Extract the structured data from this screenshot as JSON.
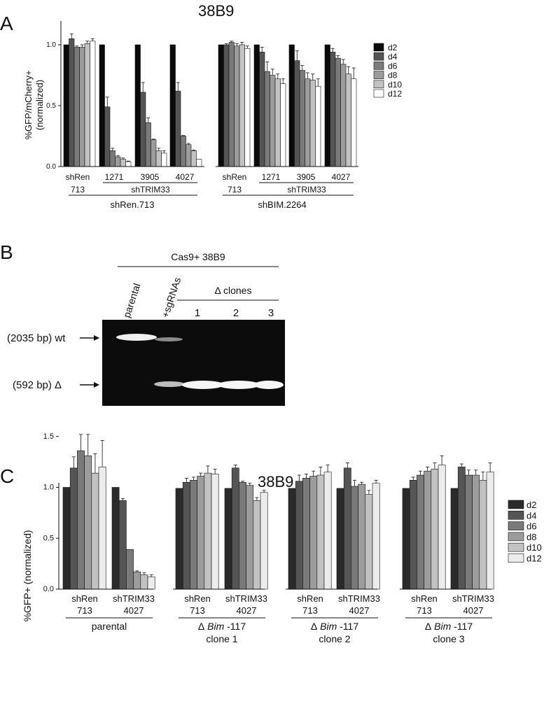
{
  "panels": {
    "A": {
      "letter": "A",
      "title": "38B9",
      "ylabel": "%GFP/mCherry+\n(normalized)",
      "yticks": [
        "1.0",
        "0.5",
        "0.0"
      ],
      "legend": [
        "d2",
        "d4",
        "d6",
        "d8",
        "d10",
        "d12"
      ],
      "groups": [
        {
          "upper": "shRen",
          "lower": "713"
        },
        {
          "upper": "1271",
          "lower": ""
        },
        {
          "upper": "3905",
          "lower": ""
        },
        {
          "upper": "4027",
          "lower": ""
        },
        {
          "upper": "shRen",
          "lower": "713"
        },
        {
          "upper": "1271",
          "lower": ""
        },
        {
          "upper": "3905",
          "lower": ""
        },
        {
          "upper": "4027",
          "lower": ""
        }
      ],
      "shtrim_label": "shTRIM33",
      "clusters": [
        "shRen.713",
        "shBIM.2264"
      ]
    },
    "B": {
      "letter": "B",
      "header": "Cas9+ 38B9",
      "lanes": [
        "parental",
        "+sgRNAs"
      ],
      "clones_header": "Δ clones",
      "clone_numbers": [
        "1",
        "2",
        "3"
      ],
      "band_wt": "(2035 bp) wt",
      "band_del": "(592 bp) Δ"
    },
    "C": {
      "letter": "C",
      "title": "38B9",
      "ylabel": "%GFP+ (normalized)",
      "yticks": [
        "1.5",
        "1.0",
        "0.5",
        "0.0"
      ],
      "legend": [
        "d2",
        "d4",
        "d6",
        "d8",
        "d10",
        "d12"
      ],
      "group_upper": [
        "shRen",
        "shTRIM33"
      ],
      "group_lower": [
        "713",
        "4027"
      ],
      "clusters": [
        {
          "line1": "parental",
          "line2": ""
        },
        {
          "line1": "Δ Bim -117",
          "line2": "clone 1"
        },
        {
          "line1": "Δ Bim -117",
          "line2": "clone 2"
        },
        {
          "line1": "Δ Bim -117",
          "line2": "clone 3"
        }
      ]
    }
  },
  "colors": {
    "d2": "#2b2b2b",
    "d4": "#555555",
    "d6": "#7a7a7a",
    "d8": "#9c9c9c",
    "d10": "#c2c2c2",
    "d12": "#ececec",
    "A_d2": "#0a0a0a",
    "A_d12": "#ffffff",
    "gel_bg": "#0c0c0c",
    "gel_band": "#f4f4f4"
  },
  "chart_data": [
    {
      "type": "bar",
      "panel": "A",
      "title": "38B9",
      "ylabel": "%GFP/mCherry+ (normalized)",
      "ylim": [
        0,
        1.2
      ],
      "series_names": [
        "d2",
        "d4",
        "d6",
        "d8",
        "d10",
        "d12"
      ],
      "groups": [
        {
          "cluster": "shRen.713",
          "label": "shRen 713",
          "values": [
            1.0,
            1.05,
            0.98,
            0.98,
            1.01,
            1.03
          ],
          "errors": [
            0.0,
            0.04,
            0.01,
            0.02,
            0.02,
            0.02
          ]
        },
        {
          "cluster": "shRen.713",
          "label": "shTRIM33 1271",
          "values": [
            1.0,
            0.49,
            0.13,
            0.08,
            0.06,
            0.04
          ],
          "errors": [
            0.0,
            0.08,
            0.02,
            0.01,
            0.01,
            0.005
          ]
        },
        {
          "cluster": "shRen.713",
          "label": "shTRIM33 3905",
          "values": [
            1.0,
            0.61,
            0.36,
            0.22,
            0.13,
            0.11
          ],
          "errors": [
            0.0,
            0.08,
            0.04,
            0.005,
            0.02,
            0.02
          ]
        },
        {
          "cluster": "shRen.713",
          "label": "shTRIM33 4027",
          "values": [
            1.0,
            0.62,
            0.25,
            0.18,
            0.13,
            0.06
          ],
          "errors": [
            0.0,
            0.07,
            0.005,
            0.01,
            0.005,
            0.0
          ]
        },
        {
          "cluster": "shBIM.2264",
          "label": "shRen 713",
          "values": [
            1.0,
            1.0,
            1.02,
            0.99,
            1.0,
            0.97
          ],
          "errors": [
            0.0,
            0.01,
            0.01,
            0.02,
            0.02,
            0.02
          ]
        },
        {
          "cluster": "shBIM.2264",
          "label": "shTRIM33 1271",
          "values": [
            1.0,
            0.94,
            0.78,
            0.75,
            0.72,
            0.68
          ],
          "errors": [
            0.0,
            0.04,
            0.08,
            0.05,
            0.04,
            0.04
          ]
        },
        {
          "cluster": "shBIM.2264",
          "label": "shTRIM33 3905",
          "values": [
            1.0,
            0.87,
            0.79,
            0.72,
            0.71,
            0.66
          ],
          "errors": [
            0.0,
            0.08,
            0.04,
            0.05,
            0.05,
            0.06
          ]
        },
        {
          "cluster": "shBIM.2264",
          "label": "shTRIM33 4027",
          "values": [
            1.0,
            0.94,
            0.89,
            0.84,
            0.76,
            0.72
          ],
          "errors": [
            0.0,
            0.03,
            0.02,
            0.04,
            0.06,
            0.09
          ]
        }
      ]
    },
    {
      "type": "bar",
      "panel": "C",
      "title": "38B9",
      "ylabel": "%GFP+ (normalized)",
      "ylim": [
        0,
        1.65
      ],
      "series_names": [
        "d2",
        "d4",
        "d6",
        "d8",
        "d10",
        "d12"
      ],
      "groups": [
        {
          "cluster": "parental",
          "label": "shRen 713",
          "values": [
            1.0,
            1.19,
            1.36,
            1.31,
            1.14,
            1.2
          ],
          "errors": [
            0.0,
            0.11,
            0.16,
            0.21,
            0.19,
            0.26
          ]
        },
        {
          "cluster": "parental",
          "label": "shTRIM33 4027",
          "values": [
            1.0,
            0.87,
            0.39,
            0.17,
            0.14,
            0.12
          ],
          "errors": [
            0.0,
            0.02,
            0.0,
            0.01,
            0.02,
            0.02
          ]
        },
        {
          "cluster": "clone 1",
          "label": "shRen 713",
          "values": [
            0.99,
            1.05,
            1.07,
            1.11,
            1.14,
            1.13
          ],
          "errors": [
            0.0,
            0.04,
            0.03,
            0.03,
            0.07,
            0.05
          ]
        },
        {
          "cluster": "clone 1",
          "label": "shTRIM33 4027",
          "values": [
            0.99,
            1.19,
            1.05,
            1.02,
            0.87,
            0.95
          ],
          "errors": [
            0.0,
            0.03,
            0.01,
            0.02,
            0.03,
            0.02
          ]
        },
        {
          "cluster": "clone 2",
          "label": "shRen 713",
          "values": [
            0.99,
            1.06,
            1.09,
            1.11,
            1.12,
            1.15
          ],
          "errors": [
            0.0,
            0.06,
            0.04,
            0.05,
            0.08,
            0.07
          ]
        },
        {
          "cluster": "clone 2",
          "label": "shTRIM33 4027",
          "values": [
            0.99,
            1.19,
            1.01,
            1.03,
            0.93,
            1.04
          ],
          "errors": [
            0.0,
            0.05,
            0.06,
            0.02,
            0.04,
            0.03
          ]
        },
        {
          "cluster": "clone 3",
          "label": "shRen 713",
          "values": [
            0.99,
            1.07,
            1.12,
            1.16,
            1.18,
            1.22
          ],
          "errors": [
            0.0,
            0.03,
            0.04,
            0.04,
            0.06,
            0.09
          ]
        },
        {
          "cluster": "clone 3",
          "label": "shTRIM33 4027",
          "values": [
            0.99,
            1.2,
            1.12,
            1.12,
            1.07,
            1.15
          ],
          "errors": [
            0.0,
            0.03,
            0.05,
            0.05,
            0.08,
            0.09
          ]
        }
      ]
    }
  ]
}
